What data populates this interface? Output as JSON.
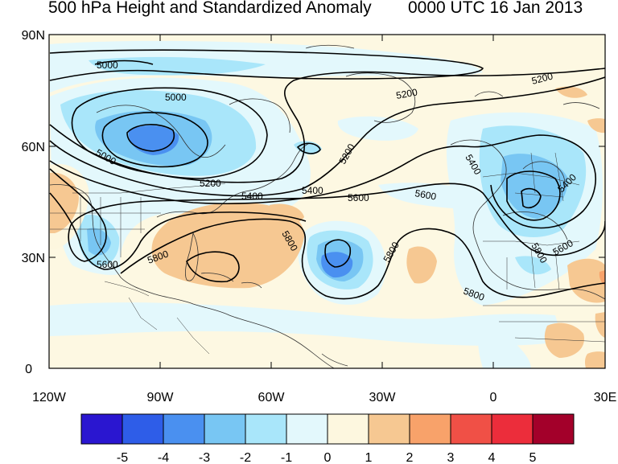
{
  "title_left": "500 hPa Height and Standardized Anomaly",
  "title_right": "0000 UTC 16 Jan 2013",
  "axes": {
    "lat_ticks": [
      "90N",
      "60N",
      "30N",
      "0"
    ],
    "lon_ticks": [
      "120W",
      "90W",
      "60W",
      "30W",
      "0",
      "30E"
    ]
  },
  "contour_labels": [
    "5000",
    "5000",
    "5000",
    "5200",
    "5200",
    "5200",
    "5200",
    "5400",
    "5400",
    "5400",
    "5400",
    "5600",
    "5600",
    "5600",
    "5600",
    "5800",
    "5800",
    "5800",
    "5800",
    "5800"
  ],
  "colorbar": {
    "labels": [
      "-5",
      "-4",
      "-3",
      "-2",
      "-1",
      "0",
      "1",
      "2",
      "3",
      "4",
      "5"
    ],
    "colors": [
      "#2a16d0",
      "#2e5de8",
      "#4a90f0",
      "#78c6f3",
      "#a9e6fa",
      "#e3f8fc",
      "#fdf7df",
      "#f6c892",
      "#f8a26a",
      "#f05046",
      "#ec2d3b",
      "#a3002a"
    ]
  }
}
